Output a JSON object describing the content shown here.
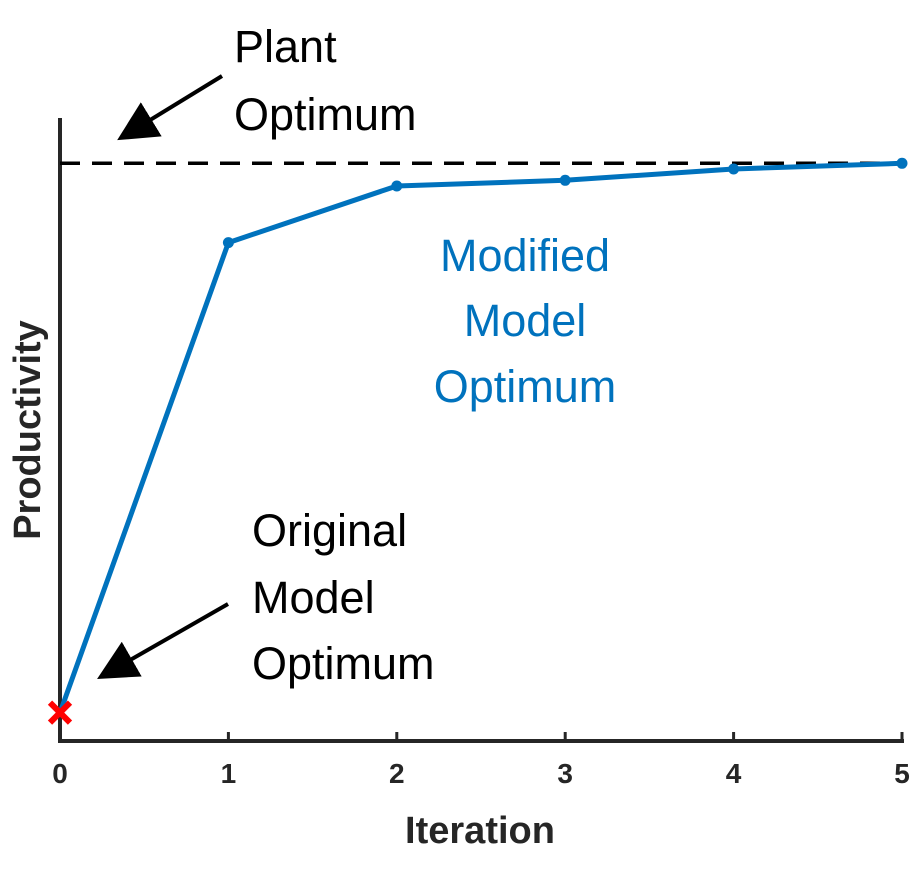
{
  "chart_data": {
    "type": "line",
    "xlabel": "Iteration",
    "ylabel": "Productivity",
    "xlim": [
      0,
      5
    ],
    "ylim": [
      -0.05,
      1.05
    ],
    "x_ticks": [
      "0",
      "1",
      "2",
      "3",
      "4",
      "5"
    ],
    "grid": false,
    "series": [
      {
        "x": [
          0,
          1,
          2,
          3,
          4,
          5
        ],
        "y": [
          0.0,
          0.83,
          0.93,
          0.94,
          0.96,
          0.97
        ],
        "color": "#0072BD"
      }
    ],
    "reference_line": {
      "y": 0.97,
      "style": "dashed",
      "color": "#000000"
    },
    "start_marker": {
      "x": 0,
      "y": 0.0,
      "symbol": "x",
      "color": "#FF0000"
    },
    "annotations": {
      "plant_optimum": [
        "Plant",
        "Optimum"
      ],
      "modified_model_optimum": [
        "Modified",
        "Model",
        "Optimum"
      ],
      "original_model_optimum": [
        "Original",
        "Model",
        "Optimum"
      ]
    }
  }
}
